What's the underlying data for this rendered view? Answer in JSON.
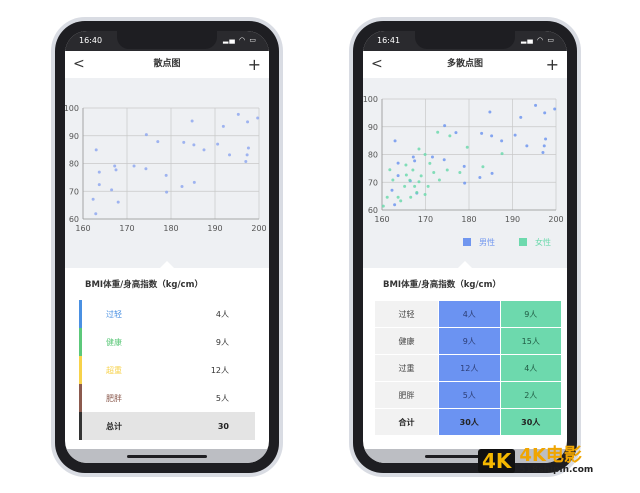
{
  "left": {
    "status_time": "16:40",
    "title": "散点图",
    "back_icon": "chevron-left-icon",
    "add_icon": "plus-icon",
    "section_title": "BMI体重/身高指数（kg/cm）",
    "items": [
      {
        "label": "过轻",
        "value": "4人",
        "color": "#4a90e2"
      },
      {
        "label": "健康",
        "value": "9人",
        "color": "#5cc87a"
      },
      {
        "label": "超重",
        "value": "12人",
        "color": "#f7d24a"
      },
      {
        "label": "肥胖",
        "value": "5人",
        "color": "#8b5a4e"
      }
    ],
    "total": {
      "label": "总计",
      "value": "30",
      "color": "#333333"
    }
  },
  "right": {
    "status_time": "16:41",
    "title": "多散点图",
    "back_icon": "chevron-left-icon",
    "add_icon": "plus-icon",
    "section_title": "BMI体重/身高指数（kg/cm）",
    "rows": [
      {
        "label": "过轻",
        "male": "4人",
        "female": "9人"
      },
      {
        "label": "健康",
        "male": "9人",
        "female": "15人"
      },
      {
        "label": "过重",
        "male": "12人",
        "female": "4人"
      },
      {
        "label": "肥胖",
        "male": "5人",
        "female": "2人"
      },
      {
        "label": "合计",
        "male": "30人",
        "female": "30人"
      }
    ]
  },
  "watermark": {
    "badge": "4K",
    "sub": "ULTRA HD",
    "text": "4K电影",
    "url": "518shipin.com"
  },
  "chart_data": [
    {
      "type": "scatter",
      "xlim": [
        160,
        200
      ],
      "ylim": [
        60,
        100
      ],
      "xticks": [
        160,
        170,
        180,
        190,
        200
      ],
      "yticks": [
        60,
        70,
        80,
        90,
        100
      ],
      "grid": true,
      "series": [
        {
          "color": "#8fa8ee",
          "points": [
            [
              163,
              84.9
            ],
            [
              162.9,
              61.9
            ],
            [
              162.3,
              67.1
            ],
            [
              163.7,
              76.9
            ],
            [
              163.7,
              72.4
            ],
            [
              167.2,
              79.1
            ],
            [
              167.5,
              77.7
            ],
            [
              166.5,
              70.5
            ],
            [
              168,
              66.1
            ],
            [
              171.6,
              79.1
            ],
            [
              174.3,
              78.1
            ],
            [
              174.4,
              90.4
            ],
            [
              177,
              87.9
            ],
            [
              178.9,
              75.7
            ],
            [
              179,
              69.7
            ],
            [
              182.5,
              71.7
            ],
            [
              182.9,
              87.6
            ],
            [
              184.8,
              95.3
            ],
            [
              185.2,
              86.7
            ],
            [
              185.3,
              73.2
            ],
            [
              187.5,
              84.9
            ],
            [
              190.6,
              87
            ],
            [
              191.9,
              93.4
            ],
            [
              193.3,
              83.1
            ],
            [
              195.3,
              97.7
            ],
            [
              197.4,
              95
            ],
            [
              197.6,
              85.6
            ],
            [
              197.3,
              83.1
            ],
            [
              197,
              80.7
            ],
            [
              199.7,
              96.4
            ]
          ]
        }
      ]
    },
    {
      "type": "scatter",
      "xlim": [
        160,
        200
      ],
      "ylim": [
        60,
        100
      ],
      "xticks": [
        160,
        170,
        180,
        190,
        200
      ],
      "yticks": [
        60,
        70,
        80,
        90,
        100
      ],
      "grid": true,
      "legend": "bottom",
      "series": [
        {
          "name": "男性",
          "color": "#7096ef",
          "points": [
            [
              163,
              84.9
            ],
            [
              162.9,
              61.9
            ],
            [
              162.3,
              67.1
            ],
            [
              163.7,
              76.9
            ],
            [
              163.7,
              72.4
            ],
            [
              167.2,
              79.1
            ],
            [
              167.5,
              77.7
            ],
            [
              166.5,
              70.5
            ],
            [
              168,
              66.1
            ],
            [
              171.6,
              79.1
            ],
            [
              174.3,
              78.1
            ],
            [
              174.4,
              90.4
            ],
            [
              177,
              87.9
            ],
            [
              178.9,
              75.7
            ],
            [
              179,
              69.7
            ],
            [
              182.5,
              71.7
            ],
            [
              182.9,
              87.6
            ],
            [
              184.8,
              95.3
            ],
            [
              185.2,
              86.7
            ],
            [
              185.3,
              73.2
            ],
            [
              187.5,
              84.9
            ],
            [
              190.6,
              87
            ],
            [
              191.9,
              93.4
            ],
            [
              193.3,
              83.1
            ],
            [
              195.3,
              97.7
            ],
            [
              197.4,
              95
            ],
            [
              197.6,
              85.6
            ],
            [
              197.3,
              83.1
            ],
            [
              197,
              80.7
            ],
            [
              199.7,
              96.4
            ]
          ]
        },
        {
          "name": "女性",
          "color": "#6dd9ad",
          "points": [
            [
              160.3,
              61.4
            ],
            [
              161.2,
              64.6
            ],
            [
              161.8,
              74.5
            ],
            [
              162.5,
              70.8
            ],
            [
              163.7,
              64.6
            ],
            [
              164.3,
              63.3
            ],
            [
              165.2,
              68.5
            ],
            [
              165.5,
              76.2
            ],
            [
              165.6,
              72.6
            ],
            [
              166.4,
              70.7
            ],
            [
              166.6,
              64.6
            ],
            [
              167.1,
              74.4
            ],
            [
              167.5,
              68.5
            ],
            [
              168,
              66.3
            ],
            [
              168.5,
              82
            ],
            [
              168.5,
              70.2
            ],
            [
              169,
              72.3
            ],
            [
              169.9,
              65.6
            ],
            [
              169.9,
              80
            ],
            [
              170.6,
              68.5
            ],
            [
              171,
              76.8
            ],
            [
              171.9,
              73.5
            ],
            [
              173.2,
              70.8
            ],
            [
              172.8,
              88
            ],
            [
              175,
              74.4
            ],
            [
              175.6,
              86.7
            ],
            [
              177.9,
              73.5
            ],
            [
              179.6,
              82.6
            ],
            [
              183.2,
              75.6
            ],
            [
              187.6,
              80.3
            ]
          ]
        }
      ]
    }
  ]
}
